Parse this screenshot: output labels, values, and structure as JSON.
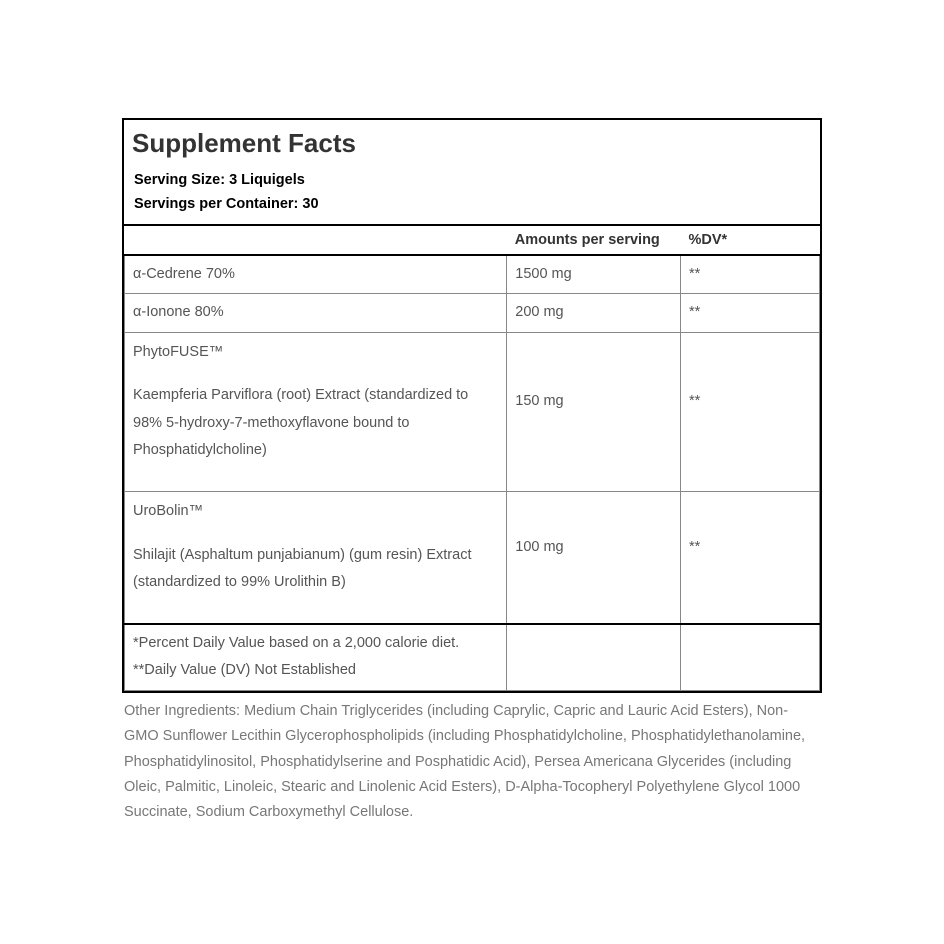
{
  "title": "Supplement Facts",
  "serving_size_label": "Serving Size: 3 Liquigels",
  "servings_per_container_label": "Servings per Container: 30",
  "columns": {
    "name": "",
    "amount": "Amounts per serving",
    "dv": "%DV*"
  },
  "rows": [
    {
      "name": "α-Cedrene 70%",
      "amount": "1500 mg",
      "dv": "**"
    },
    {
      "name": "α-Ionone 80%",
      "amount": "200 mg",
      "dv": "**"
    }
  ],
  "complex_rows": [
    {
      "brand": "PhytoFUSE™",
      "desc": "Kaempferia Parviflora (root) Extract (standardized to 98% 5-hydroxy-7-methoxyflavone bound to Phosphatidylcholine)",
      "amount": "150 mg",
      "dv": "**"
    },
    {
      "brand": "UroBolin™",
      "desc": "Shilajit (Asphaltum punjabianum) (gum resin) Extract (standardized to 99% Urolithin B)",
      "amount": "100 mg",
      "dv": "**"
    }
  ],
  "footnote1": "*Percent Daily Value based on a 2,000 calorie diet.",
  "footnote2": "**Daily Value (DV) Not Established",
  "other_ingredients": "Other Ingredients: Medium Chain Triglycerides (including Caprylic, Capric and Lauric Acid Esters), Non-GMO Sunflower Lecithin Glycerophospholipids (including Phosphatidylcholine, Phosphatidylethanolamine, Phosphatidylinositol, Phosphatidylserine and Posphatidic Acid), Persea Americana Glycerides (including Oleic, Palmitic, Linoleic, Stearic and Linolenic Acid Esters), D-Alpha-Tocopheryl Polyethylene Glycol 1000 Succinate, Sodium Carboxymethyl Cellulose."
}
